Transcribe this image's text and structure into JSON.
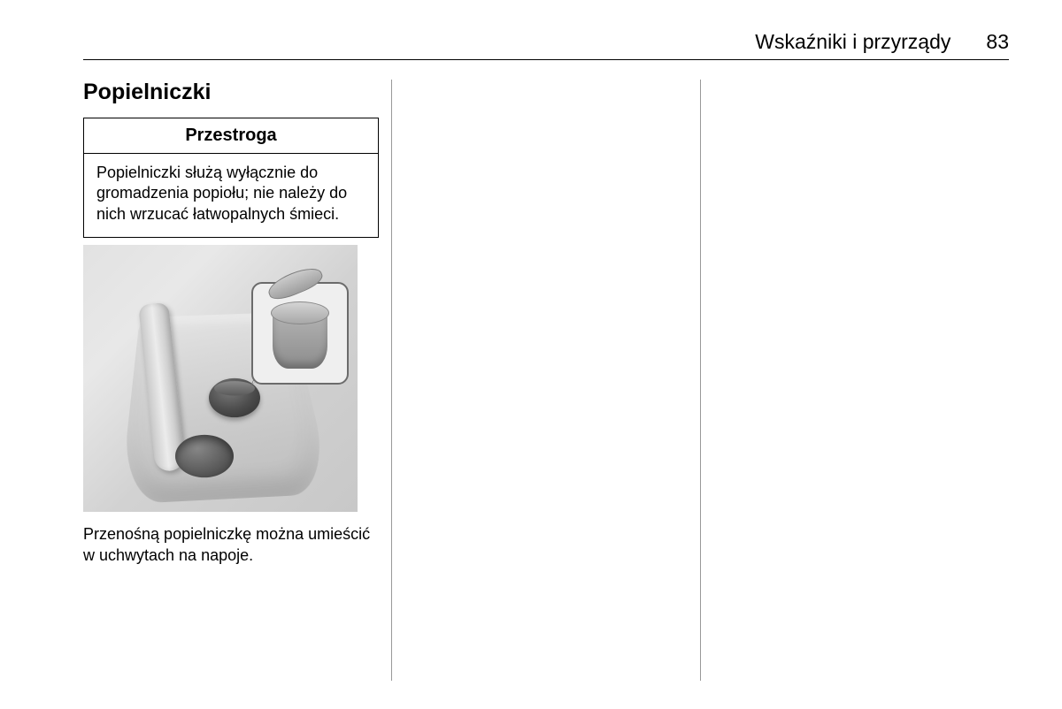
{
  "header": {
    "chapter_title": "Wskaźniki i przyrządy",
    "page_number": "83"
  },
  "column1": {
    "section_heading": "Popielniczki",
    "caution": {
      "title": "Przestroga",
      "body": "Popielniczki służą wyłącznie do gromadzenia popiołu; nie należy do nich wrzucać łatwopalnych śmieci."
    },
    "body_text": "Przenośną popielniczkę można umieścić w uchwytach na napoje."
  },
  "styling": {
    "page_bg": "#ffffff",
    "text_color": "#000000",
    "rule_color": "#000000",
    "column_sep_color": "#999999",
    "figure_bg": "#d8d8d8",
    "header_fontsize": 23,
    "heading_fontsize": 25,
    "caution_title_fontsize": 20,
    "body_fontsize": 18
  }
}
